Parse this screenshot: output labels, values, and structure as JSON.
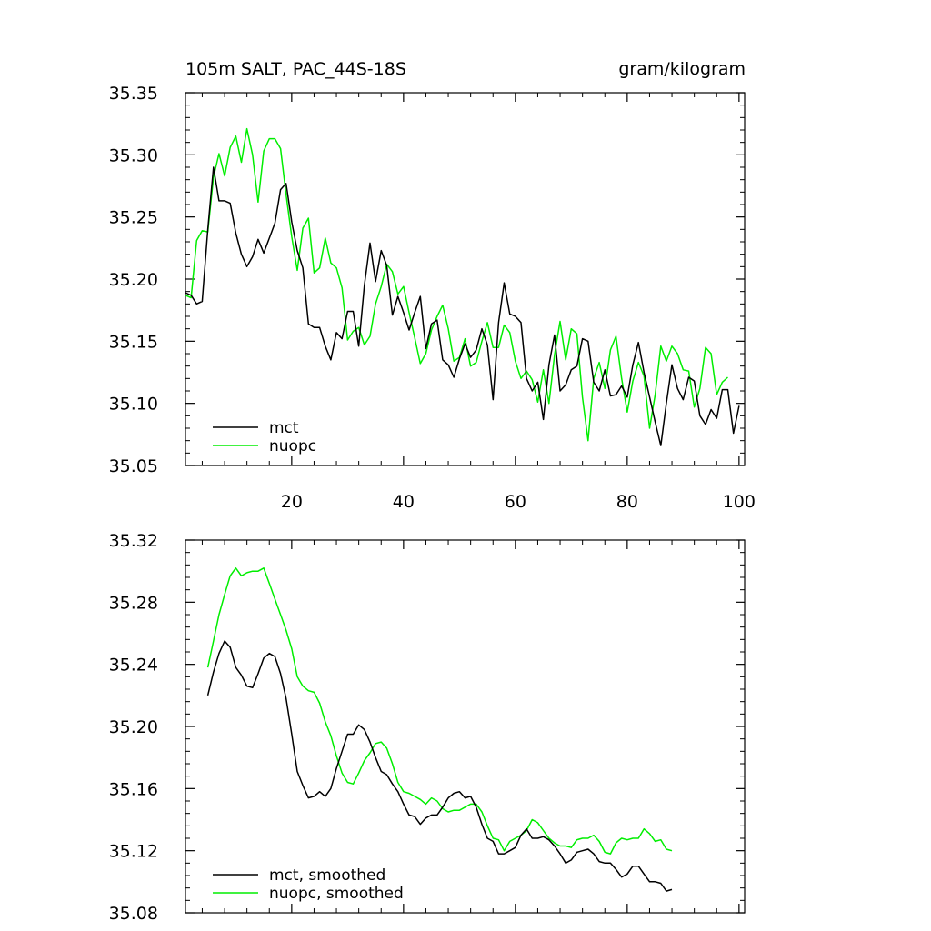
{
  "chart_data": [
    {
      "type": "line",
      "title": "105m SALT, PAC_44S-18S",
      "units": "gram/kilogram",
      "xlim": [
        1,
        101
      ],
      "ylim": [
        35.05,
        35.35
      ],
      "x_ticks": [
        20,
        40,
        60,
        80,
        100
      ],
      "x_tick_labels": [
        "20",
        "40",
        "60",
        "80",
        "100"
      ],
      "y_ticks": [
        35.05,
        35.1,
        35.15,
        35.2,
        35.25,
        35.3,
        35.35
      ],
      "y_tick_labels": [
        "35.05",
        "35.10",
        "35.15",
        "35.20",
        "35.25",
        "35.30",
        "35.35"
      ],
      "series": [
        {
          "name": "mct",
          "color": "#000000",
          "x_start": 1,
          "values": [
            35.189,
            35.187,
            35.18,
            35.182,
            35.24,
            35.29,
            35.263,
            35.263,
            35.261,
            35.237,
            35.22,
            35.21,
            35.218,
            35.232,
            35.221,
            35.233,
            35.245,
            35.272,
            35.277,
            35.246,
            35.223,
            35.209,
            35.164,
            35.161,
            35.161,
            35.146,
            35.135,
            35.157,
            35.152,
            35.174,
            35.174,
            35.146,
            35.195,
            35.229,
            35.198,
            35.223,
            35.211,
            35.171,
            35.186,
            35.173,
            35.159,
            35.173,
            35.186,
            35.144,
            35.164,
            35.167,
            35.135,
            35.131,
            35.121,
            35.136,
            35.148,
            35.137,
            35.143,
            35.16,
            35.147,
            35.103,
            35.165,
            35.197,
            35.172,
            35.17,
            35.165,
            35.12,
            35.11,
            35.117,
            35.087,
            35.131,
            35.155,
            35.11,
            35.115,
            35.127,
            35.13,
            35.152,
            35.15,
            35.117,
            35.11,
            35.127,
            35.106,
            35.107,
            35.114,
            35.105,
            35.131,
            35.149,
            35.125,
            35.105,
            35.085,
            35.066,
            35.1,
            35.131,
            35.112,
            35.103,
            35.121,
            35.118,
            35.09,
            35.083,
            35.095,
            35.088,
            35.111,
            35.111,
            35.076,
            35.098
          ]
        },
        {
          "name": "nuopc",
          "color": "#00ee00",
          "x_start": 1,
          "values": [
            35.187,
            35.185,
            35.231,
            35.239,
            35.238,
            35.282,
            35.301,
            35.283,
            35.306,
            35.315,
            35.294,
            35.321,
            35.3,
            35.262,
            35.303,
            35.313,
            35.313,
            35.305,
            35.268,
            35.234,
            35.207,
            35.241,
            35.249,
            35.205,
            35.209,
            35.233,
            35.213,
            35.209,
            35.193,
            35.151,
            35.158,
            35.161,
            35.147,
            35.154,
            35.18,
            35.194,
            35.212,
            35.206,
            35.188,
            35.194,
            35.173,
            35.153,
            35.132,
            35.14,
            35.159,
            35.17,
            35.179,
            35.16,
            35.134,
            35.137,
            35.152,
            35.13,
            35.133,
            35.15,
            35.165,
            35.145,
            35.145,
            35.163,
            35.157,
            35.134,
            35.12,
            35.126,
            35.119,
            35.101,
            35.127,
            35.1,
            35.139,
            35.166,
            35.135,
            35.16,
            35.156,
            35.105,
            35.07,
            35.12,
            35.133,
            35.112,
            35.143,
            35.154,
            35.12,
            35.093,
            35.118,
            35.133,
            35.122,
            35.08,
            35.107,
            35.146,
            35.134,
            35.146,
            35.14,
            35.127,
            35.126,
            35.097,
            35.112,
            35.145,
            35.14,
            35.107,
            35.117,
            35.121
          ]
        }
      ],
      "legend": {
        "position": "bottom-left",
        "entries": [
          "mct",
          "nuopc"
        ]
      }
    },
    {
      "type": "line",
      "title": "",
      "xlim": [
        1,
        101
      ],
      "ylim": [
        35.08,
        35.32
      ],
      "y_ticks": [
        35.08,
        35.12,
        35.16,
        35.2,
        35.24,
        35.28,
        35.32
      ],
      "y_tick_labels": [
        "35.08",
        "35.12",
        "35.16",
        "35.20",
        "35.24",
        "35.28",
        "35.32"
      ],
      "series": [
        {
          "name": "mct, smoothed",
          "color": "#000000",
          "x_start": 5,
          "values": [
            35.22,
            35.235,
            35.247,
            35.255,
            35.251,
            35.238,
            35.233,
            35.226,
            35.225,
            35.234,
            35.244,
            35.247,
            35.245,
            35.234,
            35.218,
            35.195,
            35.171,
            35.162,
            35.154,
            35.155,
            35.158,
            35.155,
            35.16,
            35.173,
            35.184,
            35.195,
            35.195,
            35.201,
            35.198,
            35.19,
            35.18,
            35.171,
            35.169,
            35.163,
            35.158,
            35.15,
            35.143,
            35.142,
            35.137,
            35.141,
            35.143,
            35.143,
            35.148,
            35.154,
            35.157,
            35.158,
            35.154,
            35.155,
            35.148,
            35.137,
            35.128,
            35.126,
            35.118,
            35.118,
            35.12,
            35.122,
            35.13,
            35.134,
            35.128,
            35.128,
            35.129,
            35.127,
            35.123,
            35.118,
            35.112,
            35.114,
            35.119,
            35.12,
            35.121,
            35.118,
            35.113,
            35.112,
            35.112,
            35.108,
            35.103,
            35.105,
            35.11,
            35.11,
            35.105,
            35.1,
            35.1,
            35.099,
            35.094,
            35.095
          ]
        },
        {
          "name": "nuopc, smoothed",
          "color": "#00ee00",
          "x_start": 5,
          "values": [
            35.238,
            35.255,
            35.272,
            35.285,
            35.297,
            35.302,
            35.297,
            35.299,
            35.3,
            35.3,
            35.302,
            35.292,
            35.282,
            35.272,
            35.262,
            35.25,
            35.232,
            35.226,
            35.223,
            35.222,
            35.215,
            35.203,
            35.194,
            35.181,
            35.17,
            35.164,
            35.163,
            35.17,
            35.178,
            35.183,
            35.189,
            35.19,
            35.186,
            35.176,
            35.164,
            35.158,
            35.157,
            35.155,
            35.153,
            35.15,
            35.154,
            35.152,
            35.147,
            35.145,
            35.146,
            35.146,
            35.148,
            35.15,
            35.15,
            35.145,
            35.136,
            35.128,
            35.127,
            35.12,
            35.126,
            35.128,
            35.13,
            35.133,
            35.14,
            35.138,
            35.133,
            35.128,
            35.125,
            35.123,
            35.123,
            35.122,
            35.127,
            35.128,
            35.128,
            35.13,
            35.126,
            35.119,
            35.118,
            35.125,
            35.128,
            35.127,
            35.128,
            35.128,
            35.134,
            35.131,
            35.126,
            35.127,
            35.121,
            35.12
          ]
        }
      ],
      "legend": {
        "position": "bottom-left",
        "entries": [
          "mct, smoothed",
          "nuopc, smoothed"
        ]
      }
    }
  ]
}
